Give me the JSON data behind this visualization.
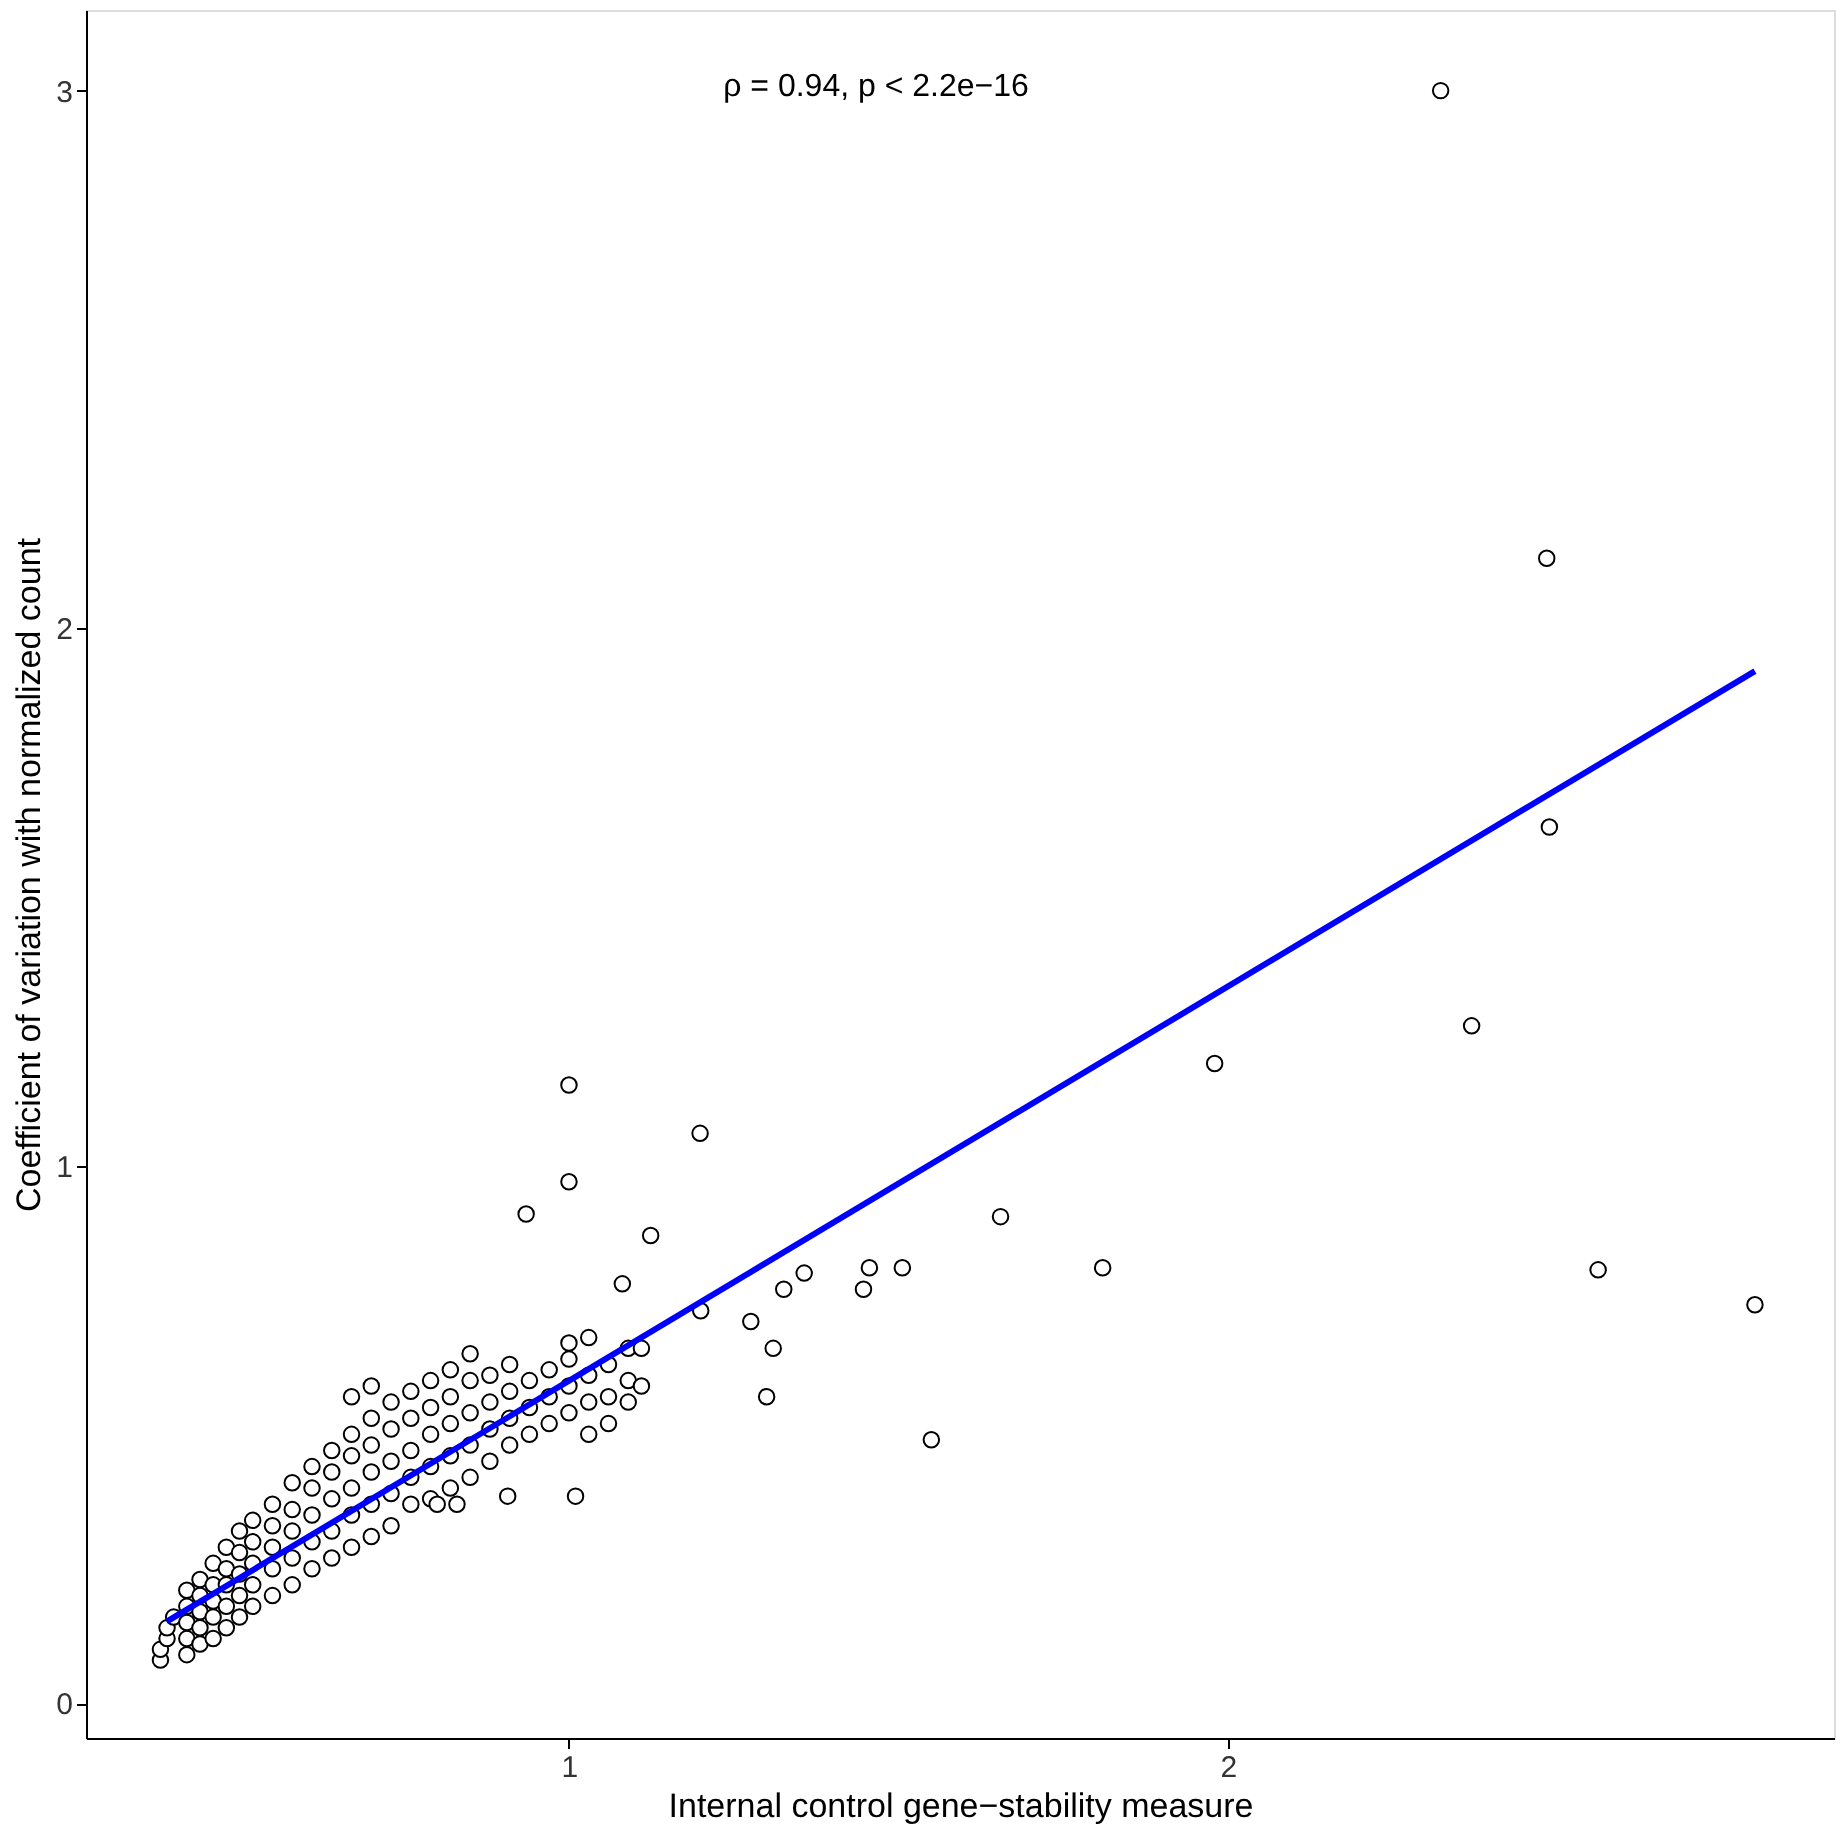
{
  "chart_data": {
    "type": "scatter",
    "xlabel": "Internal control gene−stability measure",
    "ylabel": "Coefficient of variation with normalized count",
    "annotations": [
      "ρ = 0.94, p < 2.2e−16"
    ],
    "xlim": [
      0.267,
      2.92
    ],
    "xticks": [
      1,
      2
    ],
    "ylim": [
      -0.065,
      3.15
    ],
    "yticks": [
      0,
      1,
      2,
      3
    ],
    "grid": false,
    "series": [
      {
        "marker": "circle",
        "color": "#000000",
        "x": [
          0.38,
          0.38,
          0.39,
          0.39,
          0.4,
          0.42,
          0.42,
          0.42,
          0.42,
          0.42,
          0.44,
          0.44,
          0.44,
          0.44,
          0.44,
          0.46,
          0.46,
          0.46,
          0.46,
          0.46,
          0.48,
          0.48,
          0.48,
          0.48,
          0.48,
          0.5,
          0.5,
          0.5,
          0.5,
          0.5,
          0.52,
          0.52,
          0.52,
          0.52,
          0.52,
          0.55,
          0.55,
          0.55,
          0.55,
          0.55,
          0.58,
          0.58,
          0.58,
          0.58,
          0.58,
          0.61,
          0.61,
          0.61,
          0.61,
          0.61,
          0.64,
          0.64,
          0.64,
          0.64,
          0.64,
          0.67,
          0.67,
          0.67,
          0.67,
          0.67,
          0.67,
          0.7,
          0.7,
          0.7,
          0.7,
          0.7,
          0.7,
          0.73,
          0.73,
          0.73,
          0.73,
          0.73,
          0.76,
          0.76,
          0.76,
          0.76,
          0.76,
          0.79,
          0.79,
          0.79,
          0.79,
          0.79,
          0.82,
          0.82,
          0.82,
          0.82,
          0.82,
          0.85,
          0.85,
          0.85,
          0.85,
          0.85,
          0.88,
          0.88,
          0.88,
          0.88,
          0.91,
          0.91,
          0.91,
          0.91,
          0.94,
          0.94,
          0.94,
          0.97,
          0.97,
          0.97,
          1.0,
          1.0,
          1.0,
          1.0,
          1.03,
          1.03,
          1.03,
          1.03,
          1.06,
          1.06,
          1.06,
          1.09,
          1.09,
          1.09,
          1.11,
          1.11,
          0.8,
          0.83,
          0.907,
          1.01,
          0.935,
          1.0,
          1.0,
          1.081,
          1.124,
          1.2,
          1.199,
          1.276,
          1.3,
          1.31,
          1.326,
          1.357,
          1.447,
          1.456,
          1.506,
          1.55,
          1.655,
          1.81,
          1.98,
          2.37,
          2.323,
          2.484,
          2.488,
          2.562,
          2.8
        ],
        "values": [
          0.08,
          0.1,
          0.12,
          0.14,
          0.16,
          0.09,
          0.12,
          0.15,
          0.18,
          0.21,
          0.11,
          0.14,
          0.17,
          0.2,
          0.23,
          0.12,
          0.16,
          0.19,
          0.22,
          0.26,
          0.14,
          0.18,
          0.22,
          0.25,
          0.29,
          0.16,
          0.2,
          0.24,
          0.28,
          0.32,
          0.18,
          0.22,
          0.26,
          0.3,
          0.34,
          0.2,
          0.25,
          0.29,
          0.33,
          0.37,
          0.22,
          0.27,
          0.32,
          0.36,
          0.41,
          0.25,
          0.3,
          0.35,
          0.4,
          0.44,
          0.27,
          0.32,
          0.38,
          0.43,
          0.47,
          0.29,
          0.35,
          0.4,
          0.46,
          0.5,
          0.57,
          0.31,
          0.37,
          0.43,
          0.48,
          0.53,
          0.59,
          0.33,
          0.39,
          0.45,
          0.51,
          0.56,
          0.37,
          0.42,
          0.47,
          0.53,
          0.58,
          0.38,
          0.44,
          0.5,
          0.55,
          0.6,
          0.4,
          0.46,
          0.52,
          0.57,
          0.62,
          0.42,
          0.48,
          0.54,
          0.6,
          0.65,
          0.45,
          0.51,
          0.56,
          0.61,
          0.48,
          0.53,
          0.58,
          0.63,
          0.5,
          0.55,
          0.6,
          0.52,
          0.57,
          0.62,
          0.54,
          0.59,
          0.64,
          0.67,
          0.5,
          0.56,
          0.61,
          0.68,
          0.52,
          0.57,
          0.63,
          0.56,
          0.6,
          0.66,
          0.59,
          0.66,
          0.37,
          0.37,
          0.385,
          0.385,
          0.91,
          0.97,
          1.15,
          0.78,
          0.87,
          0.73,
          1.06,
          0.71,
          0.57,
          0.66,
          0.77,
          0.8,
          0.77,
          0.81,
          0.81,
          0.49,
          0.905,
          0.81,
          1.19,
          1.26,
          3.0,
          2.13,
          1.63,
          0.806,
          0.741
        ]
      },
      {
        "type": "line",
        "color": "#0000ff",
        "x": [
          0.39,
          2.8
        ],
        "values": [
          0.152,
          1.92
        ]
      }
    ]
  }
}
